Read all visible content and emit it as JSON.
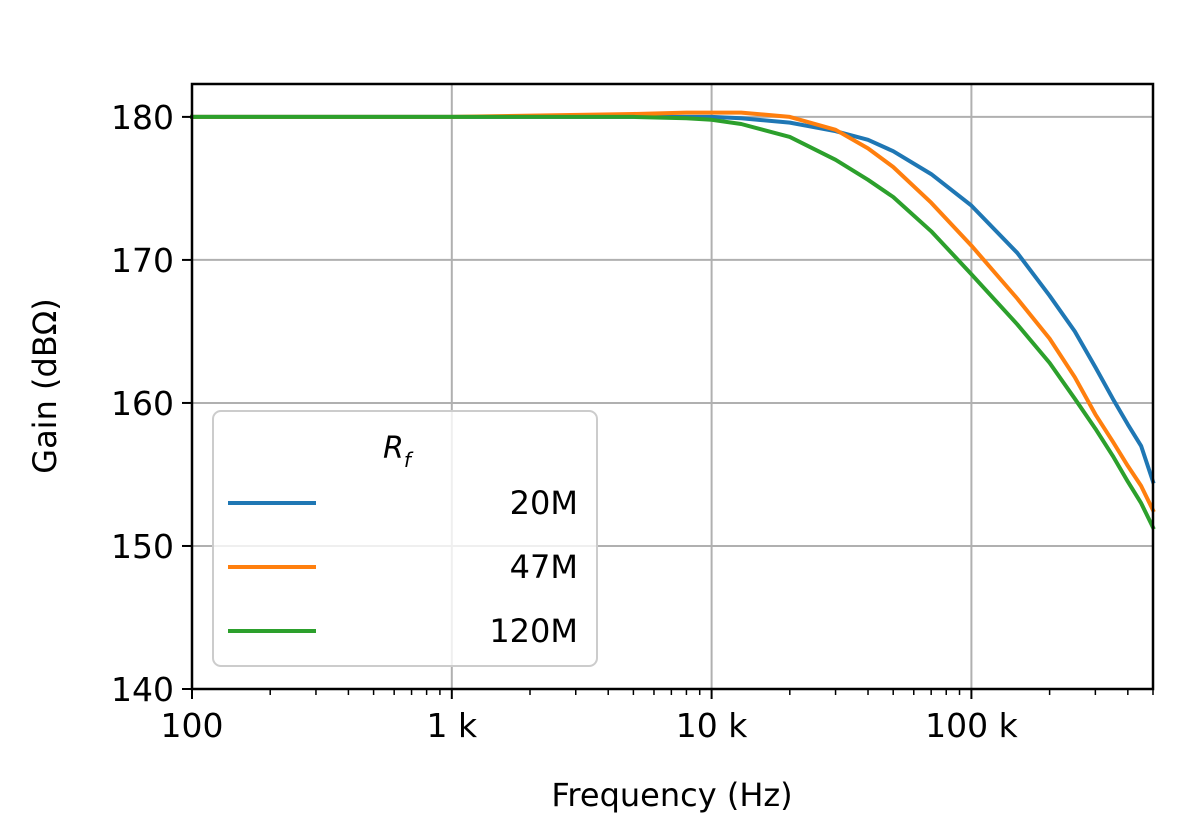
{
  "chart_data": {
    "type": "line",
    "xlabel": "Frequency (Hz)",
    "ylabel": "Gain (dBΩ)",
    "x_scale": "log",
    "xlim": [
      100,
      500000
    ],
    "ylim": [
      140,
      182.3
    ],
    "grid": true,
    "x_tick_values": [
      100,
      1000,
      10000,
      100000
    ],
    "x_tick_labels": [
      "100",
      "1 k",
      "10 k",
      "100 k"
    ],
    "y_ticks": [
      140,
      150,
      160,
      170,
      180
    ],
    "legend": {
      "title": "R_f",
      "placement": "lower-left"
    },
    "x": [
      100,
      1000,
      5000,
      8000,
      10000,
      13000,
      20000,
      30000,
      40000,
      50000,
      70000,
      100000,
      150000,
      200000,
      250000,
      300000,
      350000,
      400000,
      450000,
      500000
    ],
    "series": [
      {
        "name": "20M",
        "color": "#1f77b4",
        "values": [
          180.0,
          180.0,
          180.0,
          180.0,
          180.0,
          179.9,
          179.6,
          179.0,
          178.4,
          177.6,
          176.0,
          173.8,
          170.5,
          167.5,
          165.0,
          162.5,
          160.3,
          158.5,
          157.0,
          154.5
        ]
      },
      {
        "name": "47M",
        "color": "#ff7f0e",
        "values": [
          180.0,
          180.0,
          180.2,
          180.3,
          180.3,
          180.3,
          180.0,
          179.1,
          177.8,
          176.5,
          174.0,
          171.0,
          167.3,
          164.5,
          161.8,
          159.2,
          157.3,
          155.6,
          154.2,
          152.5
        ]
      },
      {
        "name": "120M",
        "color": "#2ca02c",
        "values": [
          180.0,
          180.0,
          180.0,
          179.9,
          179.8,
          179.5,
          178.6,
          177.0,
          175.6,
          174.4,
          172.0,
          169.0,
          165.5,
          162.8,
          160.3,
          158.2,
          156.3,
          154.5,
          153.0,
          151.3
        ]
      }
    ]
  }
}
